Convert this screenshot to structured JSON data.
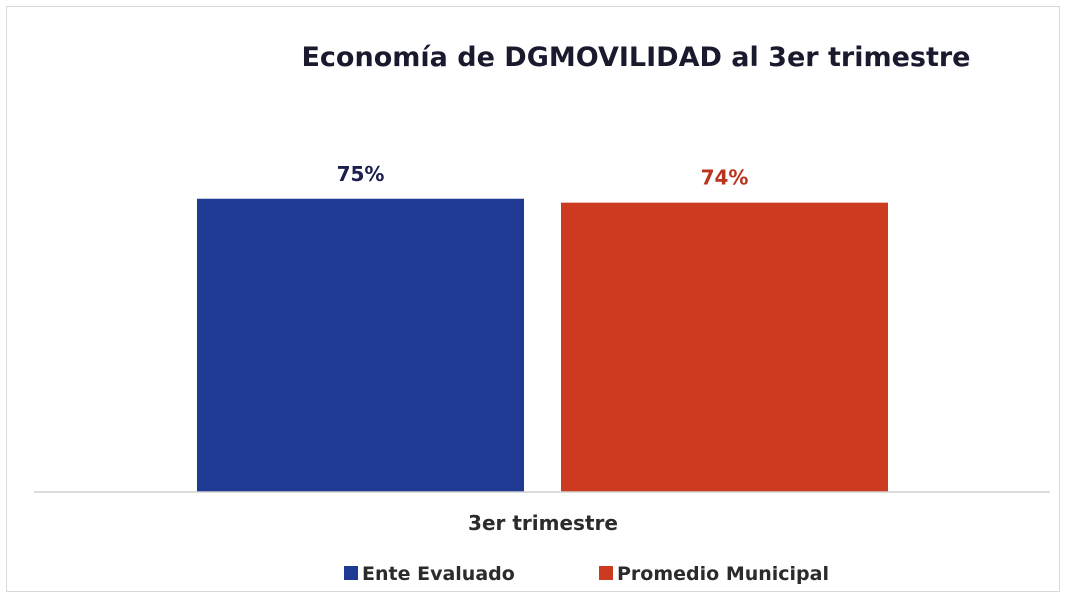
{
  "chart_data": {
    "type": "bar",
    "title": "Economía de DGMOVILIDAD al 3er trimestre",
    "categories": [
      "3er trimestre"
    ],
    "series": [
      {
        "name": "Ente Evaluado",
        "values": [
          75
        ],
        "label": "75%",
        "color": "#1f3a93"
      },
      {
        "name": "Promedio Municipal",
        "values": [
          74
        ],
        "label": "74%",
        "color": "#cc3a1f"
      }
    ],
    "label_colors": [
      "#1a1f4d",
      "#b8341c"
    ],
    "ylim": [
      0,
      100
    ],
    "grid": false,
    "legend_position": "bottom"
  }
}
